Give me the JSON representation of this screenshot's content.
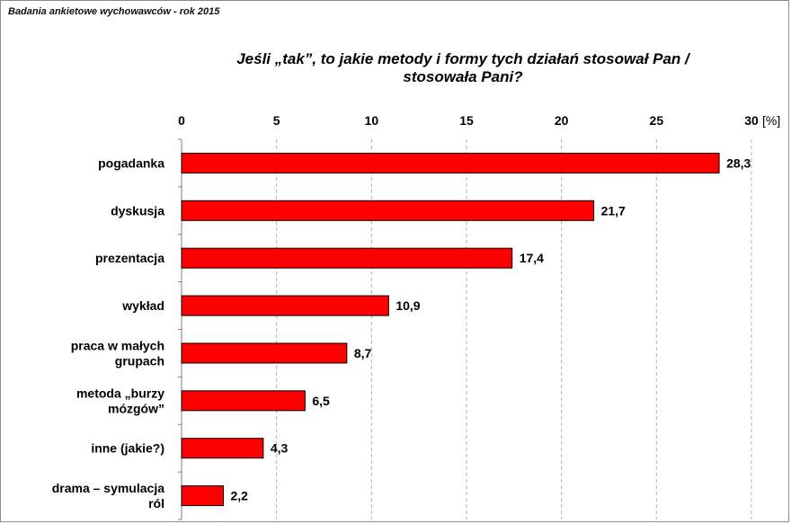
{
  "header": {
    "source_note": "Badania ankietowe wychowawców  - rok 2015",
    "title_line1": "Jeśli „tak”, to jakie metody i formy tych działań stosował Pan /",
    "title_line2": "stosowała Pani?"
  },
  "chart_data": {
    "type": "bar",
    "orientation": "horizontal",
    "title": "Jeśli „tak”, to jakie metody i formy tych działań stosował Pan / stosowała Pani?",
    "categories": [
      [
        "pogadanka"
      ],
      [
        "dyskusja"
      ],
      [
        "prezentacja"
      ],
      [
        "wykład"
      ],
      [
        "praca w małych",
        "grupach"
      ],
      [
        "metoda „burzy",
        "mózgów”"
      ],
      [
        "inne (jakie?)"
      ],
      [
        "drama – symulacja",
        "ról"
      ]
    ],
    "values": [
      28.3,
      21.7,
      17.4,
      10.9,
      8.7,
      6.5,
      4.3,
      2.2
    ],
    "value_labels": [
      "28,3",
      "21,7",
      "17,4",
      "10,9",
      "8,7",
      "6,5",
      "4,3",
      "2,2"
    ],
    "xlim": [
      0,
      30
    ],
    "xticks": [
      0,
      5,
      10,
      15,
      20,
      25,
      30
    ],
    "xtick_labels": [
      "0",
      "5",
      "10",
      "15",
      "20",
      "25",
      "30"
    ],
    "unit_label": "[%]",
    "axis_position": "top",
    "grid": "vertical dashed",
    "bar_color": "#ff0000",
    "bar_border": "#000000"
  }
}
